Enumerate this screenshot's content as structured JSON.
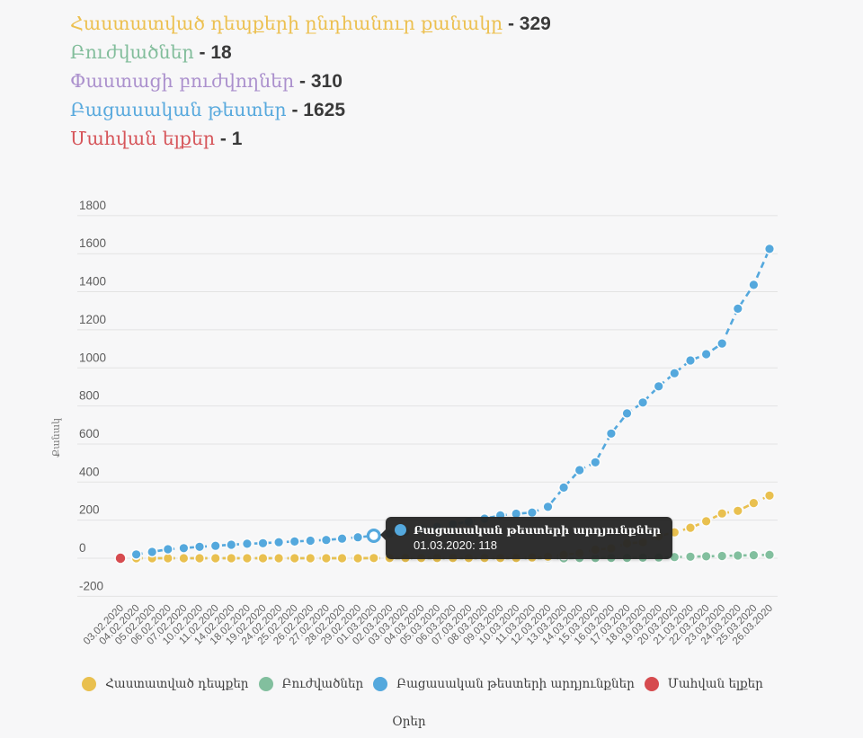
{
  "page": {
    "background": "#f7f7f8"
  },
  "header": {
    "separator": "-",
    "stats": [
      {
        "label": "Հաստատված դեպքերի ընդհանուր քանակը",
        "value": "329",
        "color": "#ecc050"
      },
      {
        "label": "Բուժվածներ",
        "value": "18",
        "color": "#82bd9b"
      },
      {
        "label": "Փաստացի բուժվողներ",
        "value": "310",
        "color": "#ab90cd"
      },
      {
        "label": "Բացասական թեստեր",
        "value": "1625",
        "color": "#58a9dd"
      },
      {
        "label": "Մահվան ելքեր",
        "value": "1",
        "color": "#d6555a"
      }
    ]
  },
  "chart_data": {
    "type": "line",
    "title": "",
    "xlabel": "Օրեր",
    "ylabel": "Քանակ",
    "ylim": [
      -200,
      1800
    ],
    "ytick_step": 200,
    "grid": true,
    "line_style": "dashed",
    "legend_position": "bottom",
    "categories": [
      "03.02.2020",
      "04.02.2020",
      "05.02.2020",
      "06.02.2020",
      "07.02.2020",
      "10.02.2020",
      "11.02.2020",
      "14.02.2020",
      "18.02.2020",
      "19.02.2020",
      "24.02.2020",
      "25.02.2020",
      "26.02.2020",
      "27.02.2020",
      "28.02.2020",
      "29.02.2020",
      "01.03.2020",
      "02.03.2020",
      "03.03.2020",
      "04.03.2020",
      "05.03.2020",
      "06.03.2020",
      "07.03.2020",
      "08.03.2020",
      "09.03.2020",
      "10.03.2020",
      "11.03.2020",
      "12.03.2020",
      "13.03.2020",
      "14.03.2020",
      "15.03.2020",
      "16.03.2020",
      "17.03.2020",
      "18.03.2020",
      "19.03.2020",
      "20.03.2020",
      "21.03.2020",
      "22.03.2020",
      "23.03.2020",
      "24.03.2020",
      "25.03.2020",
      "26.03.2020"
    ],
    "series": [
      {
        "name": "Հաստատված դեպքեր",
        "color": "#e9c04f",
        "values": [
          null,
          0,
          0,
          0,
          0,
          0,
          0,
          0,
          0,
          0,
          0,
          0,
          0,
          0,
          0,
          0,
          1,
          1,
          1,
          1,
          1,
          1,
          1,
          1,
          1,
          1,
          4,
          8,
          18,
          26,
          45,
          52,
          78,
          84,
          115,
          136,
          160,
          194,
          235,
          249,
          290,
          329
        ]
      },
      {
        "name": "Բուժվածներ",
        "color": "#82bf9e",
        "values": [
          null,
          0,
          0,
          0,
          0,
          0,
          0,
          0,
          0,
          0,
          0,
          0,
          0,
          0,
          0,
          0,
          0,
          0,
          0,
          0,
          0,
          0,
          0,
          0,
          0,
          0,
          0,
          0,
          0,
          1,
          1,
          2,
          2,
          3,
          4,
          6,
          8,
          10,
          12,
          14,
          16,
          18
        ]
      },
      {
        "name": "Բացասական թեստերի արդյունքներ",
        "color": "#54a8dd",
        "values": [
          null,
          20,
          33,
          47,
          53,
          60,
          65,
          71,
          76,
          79,
          84,
          88,
          92,
          96,
          103,
          110,
          118,
          128,
          140,
          152,
          165,
          178,
          192,
          208,
          225,
          234,
          240,
          270,
          371,
          463,
          504,
          655,
          761,
          818,
          903,
          972,
          1039,
          1072,
          1128,
          1311,
          1436,
          1625
        ]
      },
      {
        "name": "Մահվան ելքեր",
        "color": "#d64b4f",
        "values": [
          0,
          null,
          null,
          null,
          null,
          null,
          null,
          null,
          null,
          null,
          null,
          null,
          null,
          null,
          null,
          null,
          null,
          null,
          null,
          null,
          null,
          null,
          null,
          null,
          null,
          null,
          null,
          null,
          null,
          null,
          null,
          null,
          null,
          null,
          null,
          null,
          null,
          null,
          null,
          null,
          null,
          null
        ]
      }
    ],
    "highlight": {
      "series_index": 2,
      "point_index": 16,
      "category": "01.03.2020",
      "value": 118
    }
  },
  "tooltip": {
    "title": "Բացասական թեստերի արդյունքներ",
    "line": "01.03.2020: 118"
  }
}
